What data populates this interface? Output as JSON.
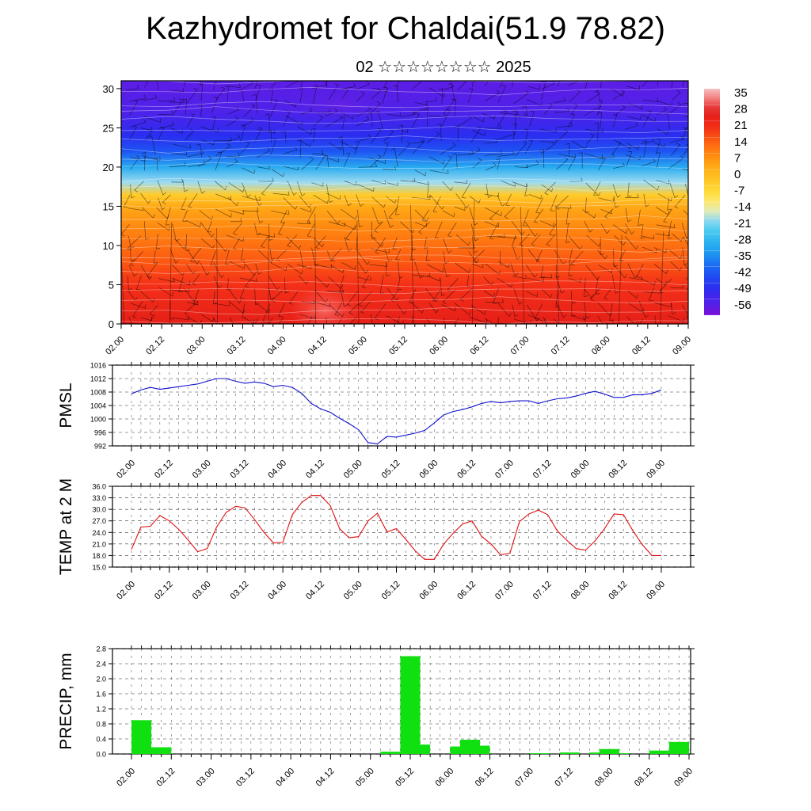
{
  "title": "Kazhydromet for Chaldai(51.9 78.82)",
  "subtitle": "02 ☆☆☆☆☆☆☆☆ 2025",
  "time_labels": [
    "02.00",
    "02.12",
    "03.00",
    "03.12",
    "04.00",
    "04.12",
    "05.00",
    "05.12",
    "06.00",
    "06.12",
    "07.00",
    "07.12",
    "08.00",
    "08.12",
    "09.00"
  ],
  "chart_data": [
    {
      "type": "heatmap",
      "name": "cross-section",
      "xlabel": "",
      "ylabel": "",
      "x_ticks": [
        "02.00",
        "02.12",
        "03.00",
        "03.12",
        "04.00",
        "04.12",
        "05.00",
        "05.12",
        "06.00",
        "06.12",
        "07.00",
        "07.12",
        "08.00",
        "08.12",
        "09.00"
      ],
      "ylim": [
        0,
        31
      ],
      "y_ticks": [
        0,
        5,
        10,
        15,
        20,
        25,
        30
      ],
      "colorbar": {
        "labels": [
          "35",
          "28",
          "21",
          "14",
          "7",
          "0",
          "-7",
          "-14",
          "-21",
          "-28",
          "-35",
          "-42",
          "-49",
          "-56"
        ],
        "range": [
          -60,
          38
        ]
      },
      "temperature_profile_by_height": [
        {
          "h": 0,
          "t": 26
        },
        {
          "h": 5,
          "t": 21
        },
        {
          "h": 8,
          "t": 16
        },
        {
          "h": 12,
          "t": 10
        },
        {
          "h": 15,
          "t": 4
        },
        {
          "h": 16.5,
          "t": -3
        },
        {
          "h": 18,
          "t": -18
        },
        {
          "h": 20,
          "t": -30
        },
        {
          "h": 22,
          "t": -42
        },
        {
          "h": 24,
          "t": -48
        },
        {
          "h": 27,
          "t": -54
        },
        {
          "h": 30,
          "t": -56
        }
      ],
      "overlay": "wind streamlines and barbs"
    },
    {
      "type": "line",
      "ylabel": "PMSL",
      "ylim": [
        992,
        1016
      ],
      "y_ticks": [
        "992",
        "996",
        "1000",
        "1004",
        "1008",
        "1012",
        "1016"
      ],
      "x_ticks": [
        "02.00",
        "02.12",
        "03.00",
        "03.12",
        "04.00",
        "04.12",
        "05.00",
        "05.12",
        "06.00",
        "06.12",
        "07.00",
        "07.12",
        "08.00",
        "08.12",
        "09.00"
      ],
      "x_step_hours": 3,
      "series": [
        {
          "color": "#1010d0",
          "values": [
            1007.5,
            1008.6,
            1009.4,
            1008.8,
            1009.2,
            1009.6,
            1010.0,
            1010.4,
            1011.2,
            1012.0,
            1012.0,
            1011.2,
            1010.6,
            1011.0,
            1010.6,
            1009.6,
            1010.0,
            1009.4,
            1007.6,
            1004.6,
            1003.0,
            1002.0,
            1000.2,
            998.6,
            996.8,
            993.0,
            992.6,
            994.8,
            994.6,
            995.2,
            995.8,
            996.6,
            998.8,
            1001.2,
            1002.2,
            1002.8,
            1003.6,
            1004.6,
            1005.2,
            1004.8,
            1005.2,
            1005.4,
            1005.4,
            1004.6,
            1005.4,
            1006.0,
            1006.2,
            1006.8,
            1007.6,
            1008.2,
            1007.4,
            1006.4,
            1006.4,
            1007.2,
            1007.2,
            1007.6,
            1008.6
          ]
        }
      ]
    },
    {
      "type": "line",
      "ylabel": "TEMP at 2 M",
      "ylim": [
        15,
        36
      ],
      "y_ticks": [
        "15.0",
        "18.0",
        "21.0",
        "24.0",
        "27.0",
        "30.0",
        "33.0",
        "36.0"
      ],
      "x_ticks": [
        "02.00",
        "02.12",
        "03.00",
        "03.12",
        "04.00",
        "04.12",
        "05.00",
        "05.12",
        "06.00",
        "06.12",
        "07.00",
        "07.12",
        "08.00",
        "08.12",
        "09.00"
      ],
      "x_step_hours": 3,
      "series": [
        {
          "color": "#e01010",
          "values": [
            19.6,
            25.4,
            25.6,
            28.4,
            27.0,
            24.8,
            22.0,
            19.0,
            19.8,
            25.4,
            29.2,
            30.8,
            30.4,
            27.4,
            24.0,
            21.3,
            21.4,
            28.6,
            31.8,
            33.6,
            33.6,
            31.0,
            25.0,
            22.6,
            22.9,
            27.0,
            29.0,
            24.1,
            25.0,
            22.2,
            19.2,
            17.0,
            17.0,
            21.0,
            23.8,
            26.2,
            27.0,
            23.0,
            21.0,
            18.2,
            18.6,
            26.8,
            28.8,
            29.8,
            28.6,
            24.4,
            22.0,
            19.8,
            19.4,
            21.8,
            25.0,
            28.8,
            28.6,
            24.4,
            20.8,
            18.0,
            18.0
          ]
        }
      ]
    },
    {
      "type": "bar",
      "ylabel": "PRECIP, mm",
      "ylim": [
        0,
        2.8
      ],
      "y_ticks": [
        "0.0",
        "0.4",
        "0.8",
        "1.2",
        "1.6",
        "2.0",
        "2.4",
        "2.8"
      ],
      "x_ticks": [
        "02.00",
        "02.12",
        "03.00",
        "03.12",
        "04.00",
        "04.12",
        "05.00",
        "05.12",
        "06.00",
        "06.12",
        "07.00",
        "07.12",
        "08.00",
        "08.12",
        "09.00"
      ],
      "bar_color": "#10e010",
      "bars": [
        {
          "t": 1,
          "v": 0.9
        },
        {
          "t": 2,
          "v": 0.06
        },
        {
          "t": 3,
          "v": 0.18
        },
        {
          "t": 26,
          "v": 0.06
        },
        {
          "t": 28,
          "v": 2.6
        },
        {
          "t": 29,
          "v": 0.25
        },
        {
          "t": 33,
          "v": 0.2
        },
        {
          "t": 34,
          "v": 0.38
        },
        {
          "t": 35,
          "v": 0.22
        },
        {
          "t": 41,
          "v": 0.02
        },
        {
          "t": 44,
          "v": 0.04
        },
        {
          "t": 47,
          "v": 0.04
        },
        {
          "t": 48,
          "v": 0.13
        },
        {
          "t": 49,
          "v": 0.02
        },
        {
          "t": 53,
          "v": 0.09
        },
        {
          "t": 55,
          "v": 0.32
        }
      ]
    }
  ]
}
